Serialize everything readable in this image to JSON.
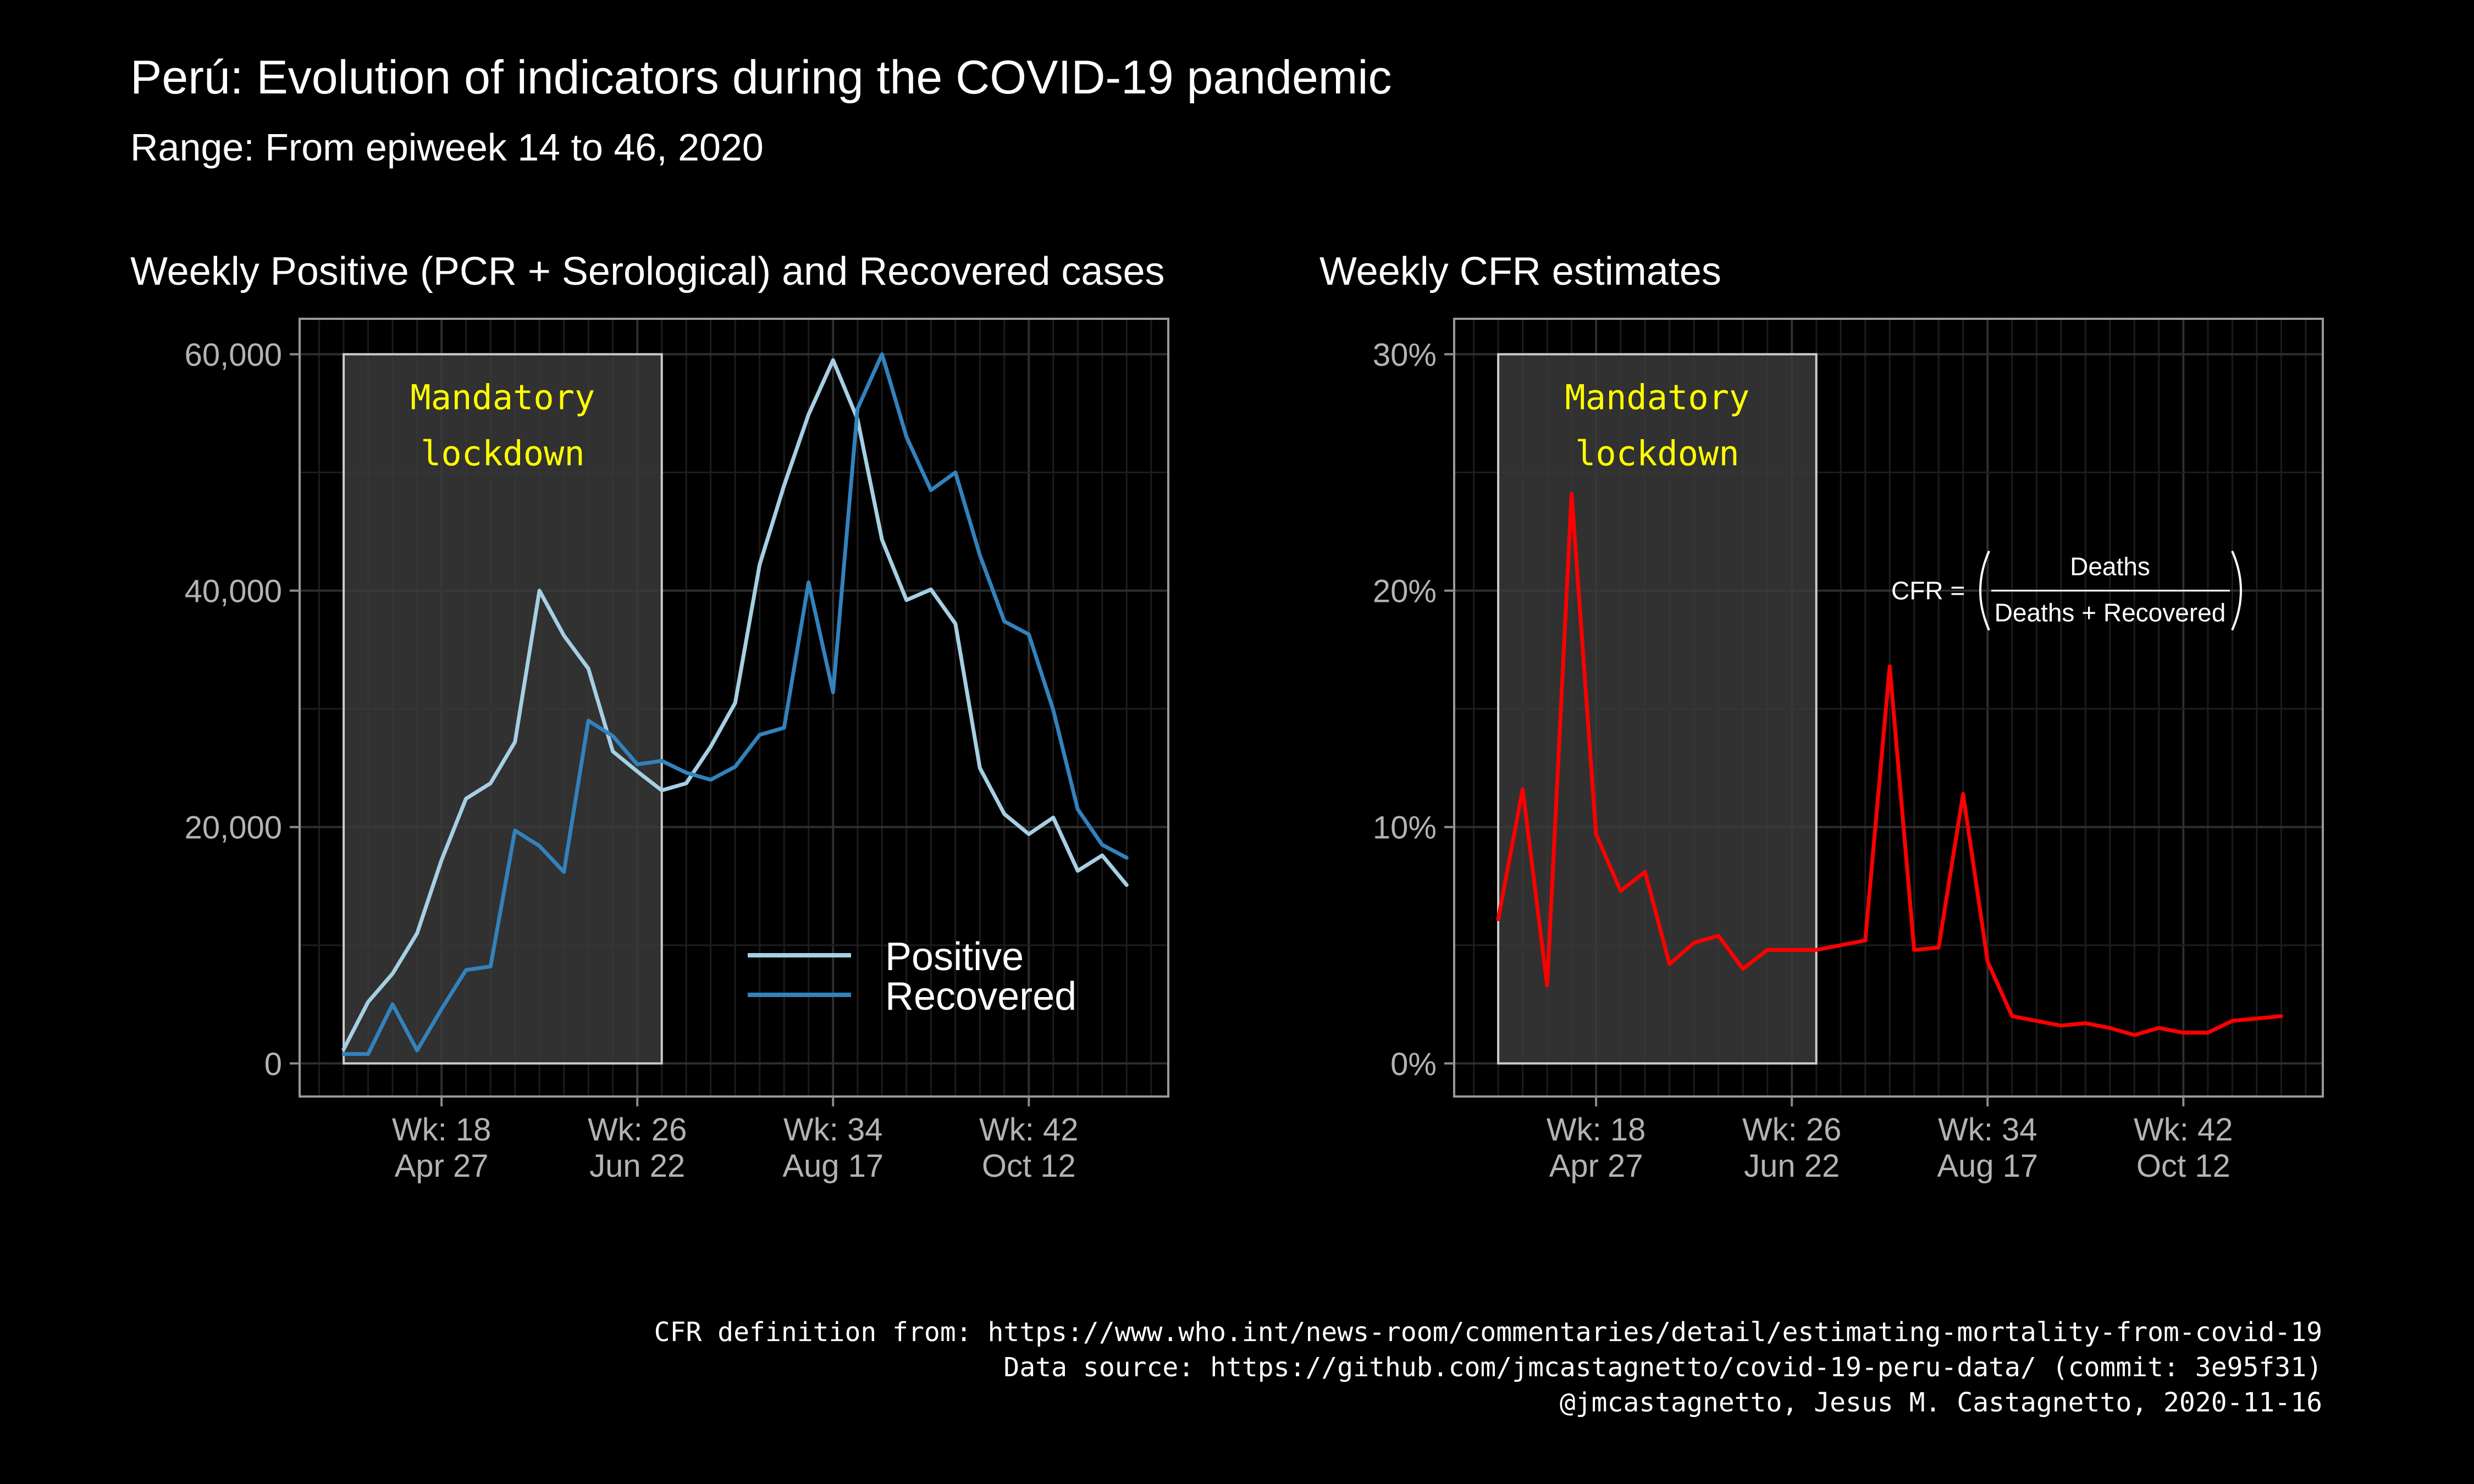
{
  "figure": {
    "title": "Perú: Evolution of indicators during the COVID-19 pandemic",
    "subtitle": "Range: From epiweek 14 to 46, 2020",
    "caption": [
      "CFR definition from: https://www.who.int/news-room/commentaries/detail/estimating-mortality-from-covid-19",
      "Data source: https://github.com/jmcastagnetto/covid-19-peru-data/ (commit: 3e95f31)",
      "@jmcastagnetto, Jesus M. Castagnetto, 2020-11-16"
    ],
    "colors": {
      "background": "#000000",
      "grid": "#262626",
      "panel_border": "#999999",
      "text": "#ffffff",
      "tick_text": "#b3b3b3",
      "lockdown_fill": "#3a3a3a",
      "lockdown_text": "#ffff00",
      "positive": "#a6cfe3",
      "recovered": "#3282bd",
      "cfr": "#ff0000"
    }
  },
  "chart_data": [
    {
      "type": "line",
      "title": "Weekly Positive (PCR + Serological) and Recovered cases",
      "xlabel": "",
      "ylabel": "",
      "x_unit": "epiweek",
      "xlim": [
        12.2,
        47.7
      ],
      "ylim": [
        -2800,
        63000
      ],
      "x_ticks": [
        {
          "value": 18,
          "week_label": "Wk: 18",
          "date_label": "Apr 27"
        },
        {
          "value": 26,
          "week_label": "Wk: 26",
          "date_label": "Jun 22"
        },
        {
          "value": 34,
          "week_label": "Wk: 34",
          "date_label": "Aug 17"
        },
        {
          "value": 42,
          "week_label": "Wk: 42",
          "date_label": "Oct 12"
        }
      ],
      "y_ticks": [
        {
          "value": 0,
          "label": "0"
        },
        {
          "value": 20000,
          "label": "20,000"
        },
        {
          "value": 40000,
          "label": "40,000"
        },
        {
          "value": 60000,
          "label": "60,000"
        }
      ],
      "grid": true,
      "annotation": {
        "type": "shaded_region",
        "x_range": [
          14,
          27
        ],
        "y_range": [
          0,
          60000
        ],
        "lines": [
          "Mandatory",
          "lockdown"
        ]
      },
      "legend": {
        "position": "bottom-right"
      },
      "x": [
        14,
        15,
        16,
        17,
        18,
        19,
        20,
        21,
        22,
        23,
        24,
        25,
        26,
        27,
        28,
        29,
        30,
        31,
        32,
        33,
        34,
        35,
        36,
        37,
        38,
        39,
        40,
        41,
        42,
        43,
        44,
        45,
        46
      ],
      "series": [
        {
          "name": "Positive",
          "color": "#a6cfe3",
          "values": [
            1200,
            5200,
            7600,
            11000,
            17200,
            22400,
            23700,
            27200,
            40000,
            36200,
            33400,
            26400,
            24700,
            23100,
            23700,
            26800,
            30500,
            42200,
            48900,
            54900,
            59500,
            54500,
            44300,
            39200,
            40100,
            37200,
            25000,
            21100,
            19400,
            20800,
            16300,
            17600,
            15100
          ]
        },
        {
          "name": "Recovered",
          "color": "#3282bd",
          "values": [
            800,
            800,
            5000,
            1100,
            4600,
            7900,
            8200,
            19700,
            18400,
            16200,
            29000,
            27700,
            25300,
            25600,
            24600,
            24000,
            25100,
            27800,
            28400,
            40700,
            31400,
            55400,
            60000,
            53000,
            48500,
            50000,
            43000,
            37400,
            36300,
            29900,
            21500,
            18500,
            17400
          ]
        }
      ]
    },
    {
      "type": "line",
      "title": "Weekly CFR estimates",
      "xlabel": "",
      "ylabel": "",
      "x_unit": "epiweek",
      "xlim": [
        12.2,
        47.7
      ],
      "ylim": [
        -1.4,
        31.5
      ],
      "x_ticks": [
        {
          "value": 18,
          "week_label": "Wk: 18",
          "date_label": "Apr 27"
        },
        {
          "value": 26,
          "week_label": "Wk: 26",
          "date_label": "Jun 22"
        },
        {
          "value": 34,
          "week_label": "Wk: 34",
          "date_label": "Aug 17"
        },
        {
          "value": 42,
          "week_label": "Wk: 42",
          "date_label": "Oct 12"
        }
      ],
      "y_ticks": [
        {
          "value": 0,
          "label": "0%"
        },
        {
          "value": 10,
          "label": "10%"
        },
        {
          "value": 20,
          "label": "20%"
        },
        {
          "value": 30,
          "label": "30%"
        }
      ],
      "grid": true,
      "annotation": {
        "type": "shaded_region",
        "x_range": [
          14,
          27
        ],
        "y_range": [
          0,
          30
        ],
        "lines": [
          "Mandatory",
          "lockdown"
        ]
      },
      "formula": {
        "lhs": "CFR =",
        "numerator": "Deaths",
        "denominator": "Deaths + Recovered",
        "x": 40,
        "y": 20
      },
      "x": [
        14,
        15,
        16,
        17,
        18,
        19,
        20,
        21,
        22,
        23,
        24,
        25,
        26,
        27,
        28,
        29,
        30,
        31,
        32,
        33,
        34,
        35,
        36,
        37,
        38,
        39,
        40,
        41,
        42,
        43,
        44,
        45,
        46
      ],
      "series": [
        {
          "name": "CFR",
          "color": "#ff0000",
          "values": [
            6.1,
            11.6,
            3.3,
            24.1,
            9.7,
            7.3,
            8.1,
            4.2,
            5.1,
            5.4,
            4.0,
            4.8,
            4.8,
            4.8,
            5.0,
            5.2,
            16.8,
            4.8,
            4.9,
            11.4,
            4.3,
            2.0,
            1.8,
            1.6,
            1.7,
            1.5,
            1.2,
            1.5,
            1.3,
            1.3,
            1.8,
            1.9,
            2.0
          ]
        }
      ]
    }
  ]
}
